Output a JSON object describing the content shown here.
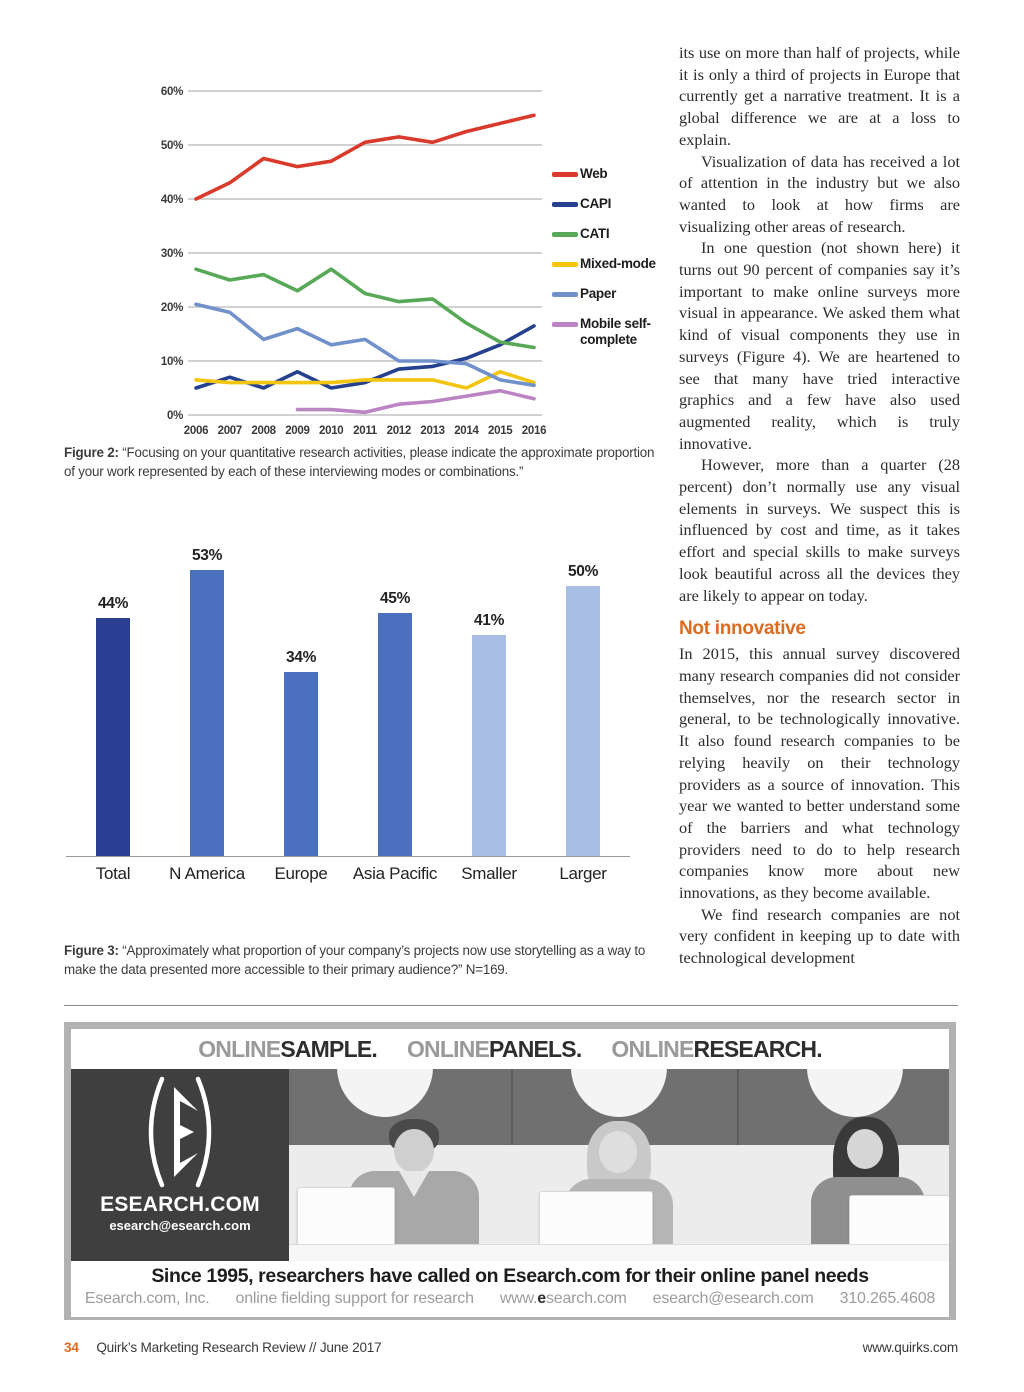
{
  "figure2": {
    "caption_prefix": "Figure 2:",
    "caption_text": "“Focusing on your quantitative research activities, please indicate the approximate proportion of your work represented by each of these interviewing modes or combinations.”"
  },
  "figure3": {
    "caption_prefix": "Figure 3:",
    "caption_text": "“Approximately what proportion of your company’s projects now use storytelling as a way to make the data presented more accessible to their primary audience?” N=169."
  },
  "chart_data": [
    {
      "type": "line",
      "title": "",
      "x": [
        2006,
        2007,
        2008,
        2009,
        2010,
        2011,
        2012,
        2013,
        2014,
        2015,
        2016
      ],
      "series": [
        {
          "name": "Web",
          "color": "#d93a2b",
          "values": [
            40,
            43,
            47.5,
            46,
            47,
            50.5,
            51.5,
            50.5,
            52.5,
            54,
            55.5
          ]
        },
        {
          "name": "CAPI",
          "color": "#24408e",
          "values": [
            5,
            7,
            5,
            8,
            5,
            6,
            8.5,
            9,
            10.5,
            13,
            16.5
          ]
        },
        {
          "name": "CATI",
          "color": "#58a957",
          "values": [
            27,
            25,
            26,
            23,
            27,
            22.5,
            21,
            21.5,
            17,
            13.5,
            12.5
          ]
        },
        {
          "name": "Mixed-mode",
          "color": "#f4c50f",
          "values": [
            6.5,
            6,
            6,
            6,
            6,
            6.5,
            6.5,
            6.5,
            5,
            8,
            6
          ]
        },
        {
          "name": "Paper",
          "color": "#7191cb",
          "values": [
            20.5,
            19,
            14,
            16,
            13,
            14,
            10,
            10,
            9.5,
            6.5,
            5.5
          ]
        },
        {
          "name": "Mobile self-complete",
          "color": "#ba85c2",
          "values": [
            null,
            null,
            null,
            1,
            1,
            0.5,
            2,
            2.5,
            3.5,
            4.5,
            3
          ]
        }
      ],
      "ylim": [
        0,
        60
      ],
      "yticks": [
        "0%",
        "10%",
        "20%",
        "30%",
        "40%",
        "50%",
        "60%"
      ],
      "grid": true,
      "legend_position": "right"
    },
    {
      "type": "bar",
      "title": "",
      "categories": [
        "Total",
        "N America",
        "Europe",
        "Asia Pacific",
        "Smaller",
        "Larger"
      ],
      "values": [
        44,
        53,
        34,
        45,
        41,
        50
      ],
      "labels": [
        "44%",
        "53%",
        "34%",
        "45%",
        "41%",
        "50%"
      ],
      "colors": [
        "#2a3f92",
        "#4b70bd",
        "#4b70bd",
        "#4b70bd",
        "#a9bee5",
        "#a9bee5"
      ],
      "ylim": [
        0,
        60
      ],
      "xlabel": "",
      "ylabel": ""
    }
  ],
  "article": {
    "paragraphs_before": [
      {
        "indent": false,
        "text": "its use on more than half of projects, while it is only a third of projects in Europe that currently get a narrative treatment. It is a global difference we are at a loss to explain."
      },
      {
        "indent": true,
        "text": "Visualization of data has received a lot of attention in the industry but we also wanted to look at how firms are visualizing other areas of research."
      },
      {
        "indent": true,
        "text": "In one question (not shown here) it turns out 90 percent of companies say it’s important to make online surveys more visual in appearance. We asked them what kind of visual components they use in surveys (Figure 4). We are heartened to see that many have tried interactive graphics and a few have also used augmented reality, which is truly innovative."
      },
      {
        "indent": true,
        "text": "However, more than a quarter (28 percent) don’t normally use any visual elements in surveys. We suspect this is influenced by cost and time, as it takes effort and special skills to make surveys look beautiful across all the devices they are likely to appear on today."
      }
    ],
    "heading": "Not innovative",
    "heading_color": "#dd6b21",
    "paragraphs_after": [
      {
        "indent": false,
        "text": "In 2015, this annual survey discovered many research companies did not consider themselves, nor the research sector in general, to be technologically innovative. It also found research companies to be relying heavily on their technology providers as a source of innovation. This year we wanted to better understand some of the barriers and what technology providers need to do to help research companies know more about new innovations, as they become available."
      },
      {
        "indent": true,
        "text": "We find research companies are not very confident in keeping up to date with technological development"
      }
    ]
  },
  "ad": {
    "header_segments": [
      {
        "gray": "ONLINE",
        "dark": "SAMPLE."
      },
      {
        "gray": "ONLINE",
        "dark": "PANELS."
      },
      {
        "gray": "ONLINE",
        "dark": "RESEARCH."
      }
    ],
    "logo": {
      "paren_left": "(",
      "letter": "E",
      "paren_right": ")",
      "name": "ESEARCH.COM",
      "email": "esearch@esearch.com"
    },
    "footer": {
      "headline": "Since 1995, researchers have called on Esearch.com for their online panel needs",
      "company": "Esearch.com, Inc.",
      "tagline": "online fielding support for research",
      "www_prefix": "www.",
      "www_e": "e",
      "www_rest": "search.com",
      "email": "esearch@esearch.com",
      "phone": "310.265.4608"
    }
  },
  "page": {
    "footer": {
      "page_number": "34",
      "journal": "Quirk’s Marketing Research Review // June 2017",
      "website": "www.quirks.com"
    }
  }
}
